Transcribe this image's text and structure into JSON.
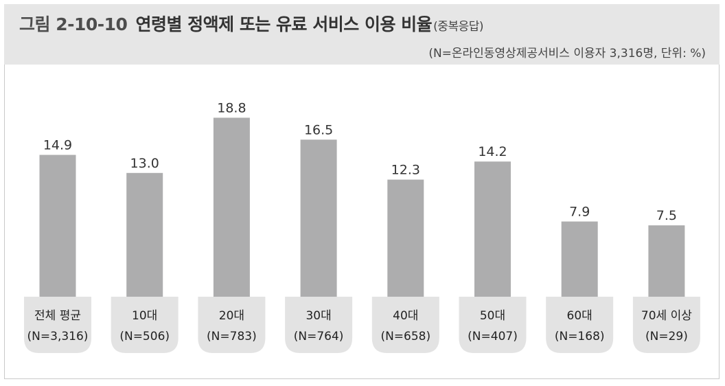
{
  "header": {
    "figure_label": "그림 2-10-10",
    "title": "연령별 정액제 또는 유료 서비스 이용 비율",
    "title_note": "(중복응답)",
    "subtitle": "(N=온라인동영상제공서비스 이용자 3,316명, 단위: %)"
  },
  "colors": {
    "bar": "#adadae",
    "tab": "#e3e3e3",
    "header_bg": "#e6e6e6"
  },
  "chart_data": {
    "type": "bar",
    "title": "연령별 정액제 또는 유료 서비스 이용 비율",
    "categories": [
      {
        "label": "전체 평균",
        "n": "(N=3,316)"
      },
      {
        "label": "10대",
        "n": "(N=506)"
      },
      {
        "label": "20대",
        "n": "(N=783)"
      },
      {
        "label": "30대",
        "n": "(N=764)"
      },
      {
        "label": "40대",
        "n": "(N=658)"
      },
      {
        "label": "50대",
        "n": "(N=407)"
      },
      {
        "label": "60대",
        "n": "(N=168)"
      },
      {
        "label": "70세 이상",
        "n": "(N=29)"
      }
    ],
    "values": [
      14.9,
      13.0,
      18.8,
      16.5,
      12.3,
      14.2,
      7.9,
      7.5
    ],
    "value_labels": [
      "14.9",
      "13.0",
      "18.8",
      "16.5",
      "12.3",
      "14.2",
      "7.9",
      "7.5"
    ],
    "unit": "%",
    "ylim": [
      0,
      20
    ],
    "grid": false,
    "legend": "none"
  }
}
